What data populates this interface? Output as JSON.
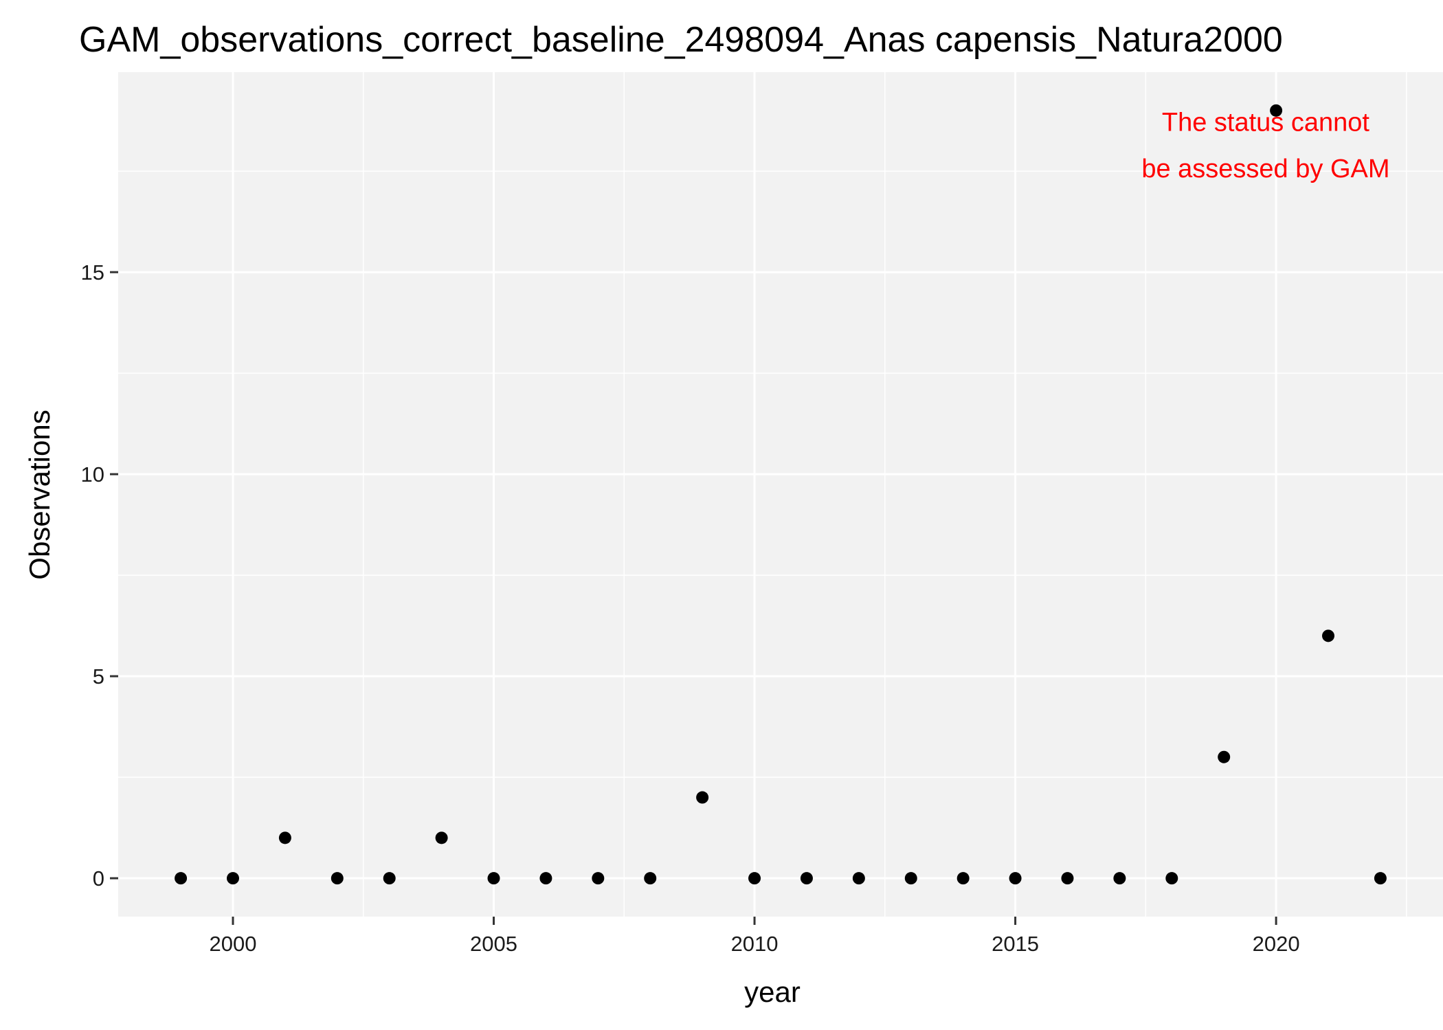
{
  "chart_data": {
    "type": "scatter",
    "title": "GAM_observations_correct_baseline_2498094_Anas capensis_Natura2000",
    "xlabel": "year",
    "ylabel": "Observations",
    "xlim": [
      1997.8,
      2023.2
    ],
    "ylim": [
      -0.95,
      19.95
    ],
    "x_ticks": [
      2000,
      2005,
      2010,
      2015,
      2020
    ],
    "x_tick_labels": [
      "2000",
      "2005",
      "2010",
      "2015",
      "2020"
    ],
    "y_ticks": [
      0,
      5,
      10,
      15
    ],
    "y_tick_labels": [
      "0",
      "5",
      "10",
      "15"
    ],
    "grid": true,
    "legend": "none",
    "panel_color": "#f2f2f2",
    "grid_color": "#ffffff",
    "point_color": "#000000",
    "annotation": {
      "lines": [
        "The status cannot",
        "be assessed by GAM"
      ],
      "color": "#ff0000",
      "x": 2019.8,
      "y": [
        18.5,
        17.35
      ]
    },
    "points": [
      {
        "x": 1999,
        "y": 0
      },
      {
        "x": 2000,
        "y": 0
      },
      {
        "x": 2001,
        "y": 1
      },
      {
        "x": 2002,
        "y": 0
      },
      {
        "x": 2003,
        "y": 0
      },
      {
        "x": 2004,
        "y": 1
      },
      {
        "x": 2005,
        "y": 0
      },
      {
        "x": 2006,
        "y": 0
      },
      {
        "x": 2007,
        "y": 0
      },
      {
        "x": 2008,
        "y": 0
      },
      {
        "x": 2009,
        "y": 2
      },
      {
        "x": 2010,
        "y": 0
      },
      {
        "x": 2011,
        "y": 0
      },
      {
        "x": 2012,
        "y": 0
      },
      {
        "x": 2013,
        "y": 0
      },
      {
        "x": 2014,
        "y": 0
      },
      {
        "x": 2015,
        "y": 0
      },
      {
        "x": 2016,
        "y": 0
      },
      {
        "x": 2017,
        "y": 0
      },
      {
        "x": 2018,
        "y": 0
      },
      {
        "x": 2019,
        "y": 3
      },
      {
        "x": 2020,
        "y": 19
      },
      {
        "x": 2021,
        "y": 6
      },
      {
        "x": 2022,
        "y": 0
      }
    ]
  }
}
